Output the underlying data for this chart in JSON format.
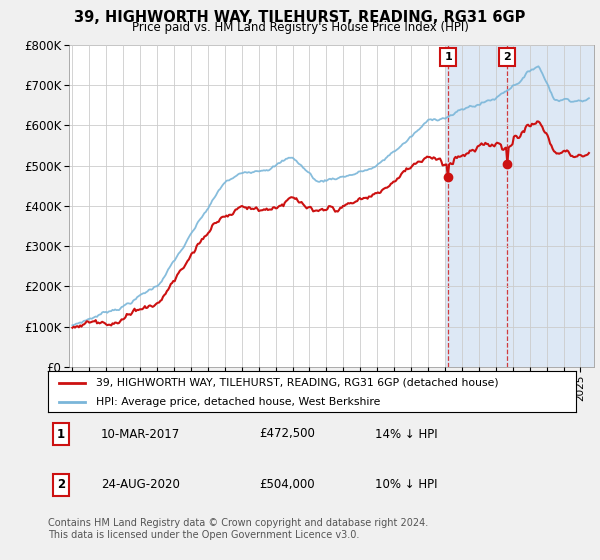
{
  "title": "39, HIGHWORTH WAY, TILEHURST, READING, RG31 6GP",
  "subtitle": "Price paid vs. HM Land Registry's House Price Index (HPI)",
  "ylim": [
    0,
    800000
  ],
  "yticks": [
    0,
    100000,
    200000,
    300000,
    400000,
    500000,
    600000,
    700000,
    800000
  ],
  "ytick_labels": [
    "£0",
    "£100K",
    "£200K",
    "£300K",
    "£400K",
    "£500K",
    "£600K",
    "£700K",
    "£800K"
  ],
  "xlim_start": 1994.8,
  "xlim_end": 2025.8,
  "hpi_color": "#7ab6d9",
  "price_color": "#cc1111",
  "marker1_date_x": 2017.19,
  "marker1_date_str": "10-MAR-2017",
  "marker1_price": 472500,
  "marker1_price_str": "£472,500",
  "marker1_pct_str": "14% ↓ HPI",
  "marker2_date_x": 2020.65,
  "marker2_date_str": "24-AUG-2020",
  "marker2_price": 504000,
  "marker2_price_str": "£504,000",
  "marker2_pct_str": "10% ↓ HPI",
  "legend_line1": "39, HIGHWORTH WAY, TILEHURST, READING, RG31 6GP (detached house)",
  "legend_line2": "HPI: Average price, detached house, West Berkshire",
  "footer": "Contains HM Land Registry data © Crown copyright and database right 2024.\nThis data is licensed under the Open Government Licence v3.0.",
  "bg_color": "#f0f0f0",
  "plot_bg_color": "#ffffff",
  "highlight_color": "#dde8f5"
}
